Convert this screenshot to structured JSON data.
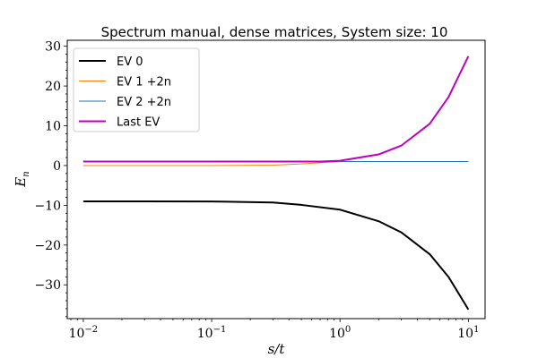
{
  "chart_data": {
    "type": "line",
    "title": "Spectrum manual, dense matrices, System size: 10",
    "xlabel": "s/t",
    "ylabel": "E_n",
    "x_scale": "log",
    "xlim": [
      0.0075,
      13.5
    ],
    "ylim": [
      -38.5,
      31.5
    ],
    "x_ticks": [
      {
        "value": 0.01,
        "base": "10",
        "exp": "−2"
      },
      {
        "value": 0.1,
        "base": "10",
        "exp": "−1"
      },
      {
        "value": 1,
        "base": "10",
        "exp": "0"
      },
      {
        "value": 10,
        "base": "10",
        "exp": "1"
      }
    ],
    "y_ticks": [
      {
        "value": 30,
        "label": "30"
      },
      {
        "value": 20,
        "label": "20"
      },
      {
        "value": 10,
        "label": "10"
      },
      {
        "value": 0,
        "label": "0"
      },
      {
        "value": -10,
        "label": "−10"
      },
      {
        "value": -20,
        "label": "−20"
      },
      {
        "value": -30,
        "label": "−30"
      }
    ],
    "grid": false,
    "legend_position": "top-left",
    "series": [
      {
        "name": "EV 0",
        "color": "#000000",
        "points": [
          [
            0.01,
            -9.0
          ],
          [
            0.03,
            -9.0
          ],
          [
            0.1,
            -9.03
          ],
          [
            0.3,
            -9.3
          ],
          [
            0.5,
            -9.9
          ],
          [
            1,
            -11.1
          ],
          [
            2,
            -14.0
          ],
          [
            3,
            -16.8
          ],
          [
            5,
            -22.3
          ],
          [
            7,
            -28.0
          ],
          [
            10,
            -36.2
          ]
        ]
      },
      {
        "name": "EV 1 +2n",
        "color": "#ff7f0e",
        "points": [
          [
            0.01,
            0.0
          ],
          [
            0.1,
            0.0
          ],
          [
            0.3,
            0.1
          ],
          [
            0.5,
            0.4
          ],
          [
            1,
            1.0
          ],
          [
            2,
            1.0
          ],
          [
            5,
            1.0
          ],
          [
            10,
            1.0
          ]
        ]
      },
      {
        "name": "EV 2 +2n",
        "color": "#1f77b4",
        "points": [
          [
            0.01,
            1.0
          ],
          [
            1,
            1.0
          ],
          [
            2,
            1.0
          ],
          [
            5,
            1.0
          ],
          [
            10,
            1.0
          ]
        ]
      },
      {
        "name": "Last EV",
        "color": "#bf00bf",
        "points": [
          [
            0.01,
            1.0
          ],
          [
            0.3,
            1.0
          ],
          [
            0.7,
            1.0
          ],
          [
            1,
            1.2
          ],
          [
            2,
            2.8
          ],
          [
            3,
            5.0
          ],
          [
            5,
            10.5
          ],
          [
            7,
            17.2
          ],
          [
            10,
            27.5
          ]
        ]
      }
    ]
  }
}
